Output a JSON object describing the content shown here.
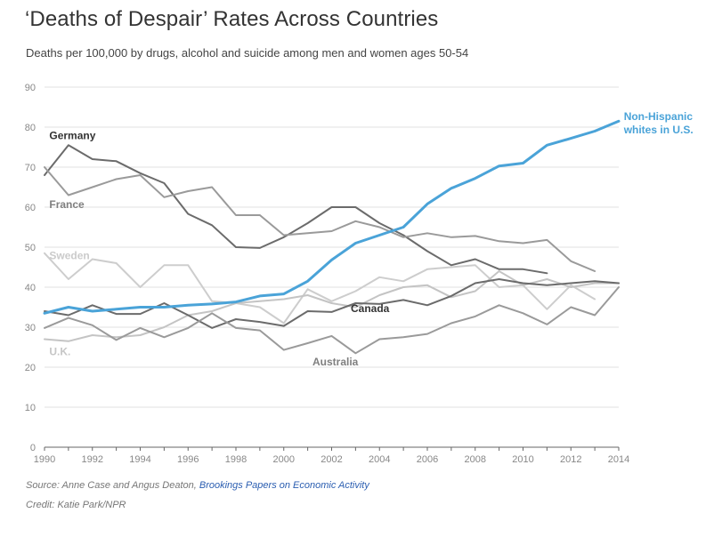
{
  "title": "‘Deaths of Despair’ Rates Across Countries",
  "subtitle": "Deaths per 100,000 by drugs, alcohol and suicide among men and women ages 50-54",
  "source_prefix": "Source: Anne Case and Angus Deaton, ",
  "source_link": "Brookings Papers on Economic Activity",
  "credit": "Credit: Katie Park/NPR",
  "chart_data": {
    "type": "line",
    "xlim": [
      1990,
      2014
    ],
    "ylim": [
      0,
      90
    ],
    "x_ticks": [
      1990,
      1992,
      1994,
      1996,
      1998,
      2000,
      2002,
      2004,
      2006,
      2008,
      2010,
      2012,
      2014
    ],
    "y_ticks": [
      0,
      10,
      20,
      30,
      40,
      50,
      60,
      70,
      80,
      90
    ],
    "grid": true,
    "legend": "direct labels",
    "series": [
      {
        "name": "Germany",
        "color": "#6b6b6b",
        "label_color": "#333333",
        "label_bold": true,
        "label_at": [
          1990.2,
          77
        ],
        "x": [
          1990,
          1991,
          1992,
          1993,
          1994,
          1995,
          1996,
          1997,
          1998,
          1999,
          2000,
          2001,
          2002,
          2003,
          2004,
          2005,
          2006,
          2007,
          2008,
          2009,
          2010,
          2011
        ],
        "y": [
          68,
          75.5,
          72,
          71.5,
          68.5,
          66,
          58.3,
          55.5,
          50,
          49.8,
          52.5,
          56,
          60,
          60,
          56,
          53,
          49,
          45.5,
          47,
          44.5,
          44.5,
          43.5
        ]
      },
      {
        "name": "France",
        "color": "#9a9a9a",
        "label_color": "#7f7f7f",
        "label_bold": true,
        "label_at": [
          1990.2,
          59.8
        ],
        "x": [
          1990,
          1991,
          1992,
          1993,
          1994,
          1995,
          1996,
          1997,
          1998,
          1999,
          2000,
          2001,
          2002,
          2003,
          2004,
          2005,
          2006,
          2007,
          2008,
          2009,
          2010,
          2011,
          2012,
          2013
        ],
        "y": [
          70,
          63,
          65,
          67,
          68,
          62.5,
          64,
          65,
          58,
          58,
          53,
          53.5,
          54,
          56.5,
          55,
          52.5,
          53.5,
          52.5,
          52.8,
          51.5,
          51,
          51.8,
          46.5,
          44
        ]
      },
      {
        "name": "Sweden",
        "color": "#cdcdcd",
        "label_color": "#cbcbcb",
        "label_bold": true,
        "label_at": [
          1990.2,
          47
        ],
        "x": [
          1990,
          1991,
          1992,
          1993,
          1994,
          1995,
          1996,
          1997,
          1998,
          1999,
          2000,
          2001,
          2002,
          2003,
          2004,
          2005,
          2006,
          2007,
          2008,
          2009,
          2010,
          2011,
          2012,
          2013
        ],
        "y": [
          48.5,
          42,
          47,
          46,
          40,
          45.5,
          45.5,
          36.5,
          36,
          35,
          31,
          39.5,
          36.5,
          39,
          42.5,
          41.5,
          44.5,
          45,
          45.5,
          40,
          40.5,
          34.5,
          40.5,
          37
        ]
      },
      {
        "name": "U.K.",
        "color": "#c4c4c4",
        "label_color": "#c6c6c6",
        "label_bold": true,
        "label_at": [
          1990.2,
          23
        ],
        "x": [
          1990,
          1991,
          1992,
          1993,
          1994,
          1995,
          1996,
          1997,
          1998,
          1999,
          2000,
          2001,
          2002,
          2003,
          2004,
          2005,
          2006,
          2007,
          2008,
          2009,
          2010,
          2011,
          2012,
          2013,
          2014
        ],
        "y": [
          27,
          26.5,
          28,
          27.5,
          28,
          30,
          33,
          34,
          36,
          36.5,
          37,
          38,
          36,
          35,
          38,
          40,
          40.5,
          37.5,
          39,
          44,
          40.5,
          42,
          40,
          41,
          41
        ]
      },
      {
        "name": "Canada",
        "color": "#6b6b6b",
        "label_color": "#333333",
        "label_bold": true,
        "label_at": [
          2002.8,
          33.8
        ],
        "x": [
          1990,
          1991,
          1992,
          1993,
          1994,
          1995,
          1996,
          1997,
          1998,
          1999,
          2000,
          2001,
          2002,
          2003,
          2004,
          2005,
          2006,
          2007,
          2008,
          2009,
          2010,
          2011,
          2012,
          2013,
          2014
        ],
        "y": [
          34,
          33,
          35.5,
          33.3,
          33.3,
          36,
          33,
          29.8,
          32,
          31.3,
          30.3,
          34,
          33.8,
          36,
          35.8,
          36.8,
          35.5,
          37.8,
          41,
          42,
          41,
          40.5,
          41,
          41.5,
          41
        ]
      },
      {
        "name": "Australia",
        "color": "#9a9a9a",
        "label_color": "#7f7f7f",
        "label_bold": true,
        "label_at": [
          2001.2,
          20.5
        ],
        "x": [
          1990,
          1991,
          1992,
          1993,
          1994,
          1995,
          1996,
          1997,
          1998,
          1999,
          2000,
          2001,
          2002,
          2003,
          2004,
          2005,
          2006,
          2007,
          2008,
          2009,
          2010,
          2011,
          2012,
          2013,
          2014
        ],
        "y": [
          29.8,
          32.3,
          30.5,
          26.8,
          29.8,
          27.5,
          29.8,
          33.5,
          29.8,
          29.2,
          24.3,
          26,
          27.8,
          23.5,
          27,
          27.5,
          28.3,
          31,
          32.7,
          35.5,
          33.5,
          30.7,
          35,
          33,
          40
        ]
      },
      {
        "name": "Non-Hispanic whites in U.S.",
        "label_lines": [
          "Non-Hispanic",
          "whites in U.S."
        ],
        "color": "#4aa3d8",
        "label_color": "#4aa3d8",
        "label_bold": true,
        "label_at": [
          2014.1,
          81.8
        ],
        "x": [
          1990,
          1991,
          1992,
          1993,
          1994,
          1995,
          1996,
          1997,
          1998,
          1999,
          2000,
          2001,
          2002,
          2003,
          2004,
          2005,
          2006,
          2007,
          2008,
          2009,
          2010,
          2011,
          2012,
          2013,
          2014
        ],
        "y": [
          33.5,
          35,
          34,
          34.5,
          35,
          35,
          35.5,
          35.8,
          36.3,
          37.8,
          38.3,
          41.5,
          46.8,
          51,
          53,
          55,
          60.8,
          64.7,
          67.2,
          70.3,
          71,
          75.5,
          77.2,
          79,
          81.5
        ]
      }
    ]
  }
}
